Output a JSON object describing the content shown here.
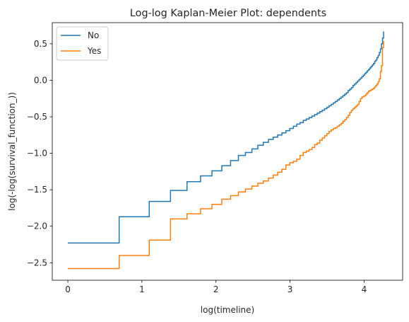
{
  "chart_data": {
    "type": "line",
    "step": true,
    "title": "Log-log Kaplan-Meier Plot: dependents",
    "xlabel": "log(timeline)",
    "ylabel": "log(-log(survival_function_))",
    "xlim": [
      -0.21,
      4.52
    ],
    "ylim": [
      -2.74,
      0.79
    ],
    "xticks": [
      0,
      1,
      2,
      3,
      4
    ],
    "yticks": [
      -2.5,
      -2.0,
      -1.5,
      -1.0,
      -0.5,
      0.0,
      0.5
    ],
    "xtick_labels": [
      "0",
      "1",
      "2",
      "3",
      "4"
    ],
    "ytick_labels": [
      "−2.5",
      "−2.0",
      "−1.5",
      "−1.0",
      "−0.5",
      "0.0",
      "0.5"
    ],
    "legend": {
      "position": "upper-left"
    },
    "series": [
      {
        "name": "No",
        "color": "#1f77b4",
        "x": [
          0.0,
          0.693,
          1.099,
          1.386,
          1.609,
          1.792,
          1.946,
          2.079,
          2.197,
          2.303,
          2.398,
          2.485,
          2.565,
          2.639,
          2.708,
          2.773,
          2.833,
          2.89,
          2.944,
          2.996,
          3.045,
          3.091,
          3.135,
          3.178,
          3.219,
          3.258,
          3.296,
          3.332,
          3.367,
          3.401,
          3.434,
          3.466,
          3.497,
          3.526,
          3.555,
          3.584,
          3.611,
          3.638,
          3.664,
          3.689,
          3.714,
          3.738,
          3.761,
          3.784,
          3.807,
          3.829,
          3.85,
          3.871,
          3.892,
          3.912,
          3.932,
          3.951,
          3.97,
          3.989,
          4.007,
          4.025,
          4.043,
          4.06,
          4.078,
          4.094,
          4.111,
          4.127,
          4.143,
          4.159,
          4.174,
          4.19,
          4.205,
          4.22,
          4.234,
          4.248,
          4.263
        ],
        "y": [
          -2.23,
          -1.87,
          -1.66,
          -1.51,
          -1.39,
          -1.31,
          -1.24,
          -1.17,
          -1.1,
          -1.03,
          -0.99,
          -0.94,
          -0.89,
          -0.85,
          -0.81,
          -0.78,
          -0.75,
          -0.72,
          -0.69,
          -0.66,
          -0.63,
          -0.6,
          -0.58,
          -0.55,
          -0.53,
          -0.51,
          -0.49,
          -0.47,
          -0.45,
          -0.43,
          -0.41,
          -0.39,
          -0.37,
          -0.35,
          -0.33,
          -0.31,
          -0.29,
          -0.27,
          -0.25,
          -0.23,
          -0.21,
          -0.19,
          -0.17,
          -0.14,
          -0.12,
          -0.1,
          -0.07,
          -0.05,
          -0.03,
          -0.01,
          0.01,
          0.03,
          0.05,
          0.07,
          0.09,
          0.11,
          0.13,
          0.15,
          0.17,
          0.19,
          0.21,
          0.23,
          0.26,
          0.28,
          0.31,
          0.34,
          0.38,
          0.43,
          0.5,
          0.58,
          0.67
        ]
      },
      {
        "name": "Yes",
        "color": "#ff7f0e",
        "x": [
          0.0,
          0.693,
          1.099,
          1.386,
          1.609,
          1.792,
          1.946,
          2.079,
          2.197,
          2.303,
          2.398,
          2.485,
          2.565,
          2.639,
          2.708,
          2.773,
          2.833,
          2.89,
          2.944,
          2.996,
          3.045,
          3.091,
          3.135,
          3.178,
          3.219,
          3.258,
          3.296,
          3.332,
          3.367,
          3.401,
          3.434,
          3.466,
          3.497,
          3.526,
          3.555,
          3.584,
          3.611,
          3.638,
          3.664,
          3.689,
          3.714,
          3.738,
          3.761,
          3.784,
          3.807,
          3.829,
          3.85,
          3.871,
          3.892,
          3.912,
          3.932,
          3.951,
          3.97,
          3.989,
          4.007,
          4.025,
          4.043,
          4.06,
          4.078,
          4.094,
          4.111,
          4.127,
          4.143,
          4.159,
          4.174,
          4.19,
          4.205,
          4.22,
          4.234,
          4.248,
          4.263
        ],
        "y": [
          -2.58,
          -2.4,
          -2.19,
          -1.9,
          -1.83,
          -1.76,
          -1.7,
          -1.63,
          -1.58,
          -1.53,
          -1.49,
          -1.45,
          -1.41,
          -1.38,
          -1.34,
          -1.3,
          -1.26,
          -1.22,
          -1.16,
          -1.13,
          -1.11,
          -1.08,
          -1.03,
          -0.99,
          -0.97,
          -0.95,
          -0.92,
          -0.88,
          -0.86,
          -0.82,
          -0.79,
          -0.76,
          -0.73,
          -0.7,
          -0.68,
          -0.66,
          -0.65,
          -0.63,
          -0.61,
          -0.59,
          -0.56,
          -0.54,
          -0.51,
          -0.48,
          -0.44,
          -0.41,
          -0.39,
          -0.37,
          -0.35,
          -0.33,
          -0.29,
          -0.25,
          -0.23,
          -0.22,
          -0.21,
          -0.19,
          -0.17,
          -0.15,
          -0.14,
          -0.13,
          -0.12,
          -0.11,
          -0.09,
          -0.07,
          -0.05,
          -0.02,
          0.02,
          0.12,
          0.2,
          0.45,
          0.54
        ]
      }
    ]
  }
}
